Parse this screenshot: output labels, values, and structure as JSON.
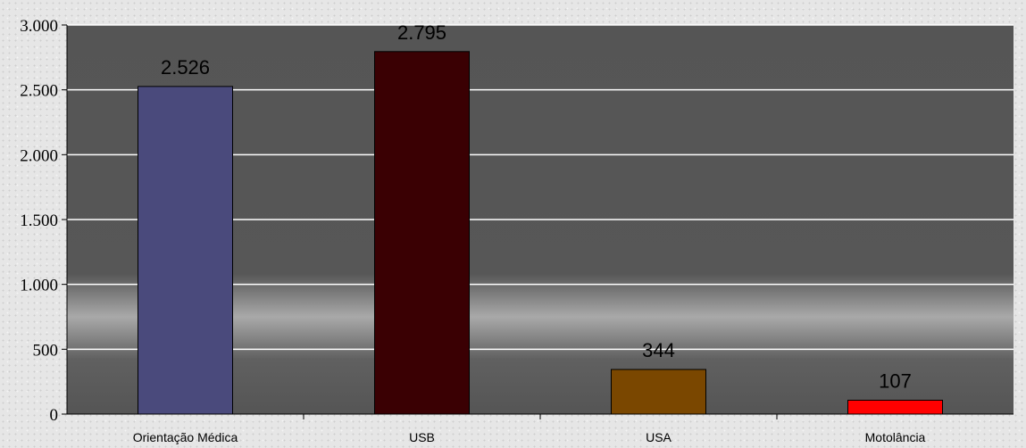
{
  "chart_data": {
    "type": "bar",
    "categories": [
      "Orientação Médica",
      "USB",
      "USA",
      "Motolância"
    ],
    "values": [
      2526,
      2795,
      344,
      107
    ],
    "value_labels": [
      "2.526",
      "2.795",
      "344",
      "107"
    ],
    "bar_colors": [
      "#4a4a7c",
      "#3a0003",
      "#7a4700",
      "#ff0000"
    ],
    "ylim": [
      0,
      3000
    ],
    "yticks": [
      0,
      500,
      1000,
      1500,
      2000,
      2500,
      3000
    ],
    "ytick_labels": [
      "0",
      "500",
      "1.000",
      "1.500",
      "2.000",
      "2.500",
      "3.000"
    ],
    "grid": true,
    "legend": "none",
    "plot_background": "#555555"
  }
}
